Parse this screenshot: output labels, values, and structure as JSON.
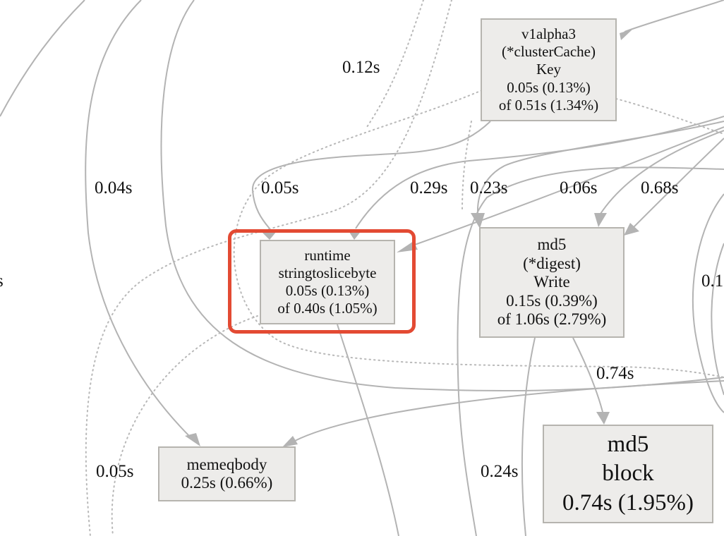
{
  "graph": {
    "nodes": {
      "cluster_cache_key": {
        "lines": [
          "v1alpha3",
          "(*clusterCache)",
          "Key",
          "0.05s (0.13%)",
          "of 0.51s (1.34%)"
        ]
      },
      "stringtoslicebyte": {
        "lines": [
          "runtime",
          "stringtoslicebyte",
          "0.05s (0.13%)",
          "of 0.40s (1.05%)"
        ]
      },
      "md5_digest_write": {
        "lines": [
          "md5",
          "(*digest)",
          "Write",
          "0.15s (0.39%)",
          "of 1.06s (2.79%)"
        ]
      },
      "memeqbody": {
        "lines": [
          "memeqbody",
          "0.25s (0.66%)"
        ]
      },
      "md5_block": {
        "lines": [
          "md5",
          "block",
          "0.74s (1.95%)"
        ]
      }
    },
    "edge_labels": {
      "e_012": "0.12s",
      "e_004": "0.04s",
      "e_005a": "0.05s",
      "e_029": "0.29s",
      "e_023": "0.23s",
      "e_006": "0.06s",
      "e_068": "0.68s",
      "e_074": "0.74s",
      "e_005b": "0.05s",
      "e_024": "0.24s",
      "e_01_partial": "0.1",
      "e_left_partial": "s"
    },
    "highlighted_node": "stringtoslicebyte",
    "colors": {
      "node_fill": "#edecea",
      "node_border": "#b6b4af",
      "edge": "#b3b3b3",
      "highlight": "#e34a33"
    }
  }
}
